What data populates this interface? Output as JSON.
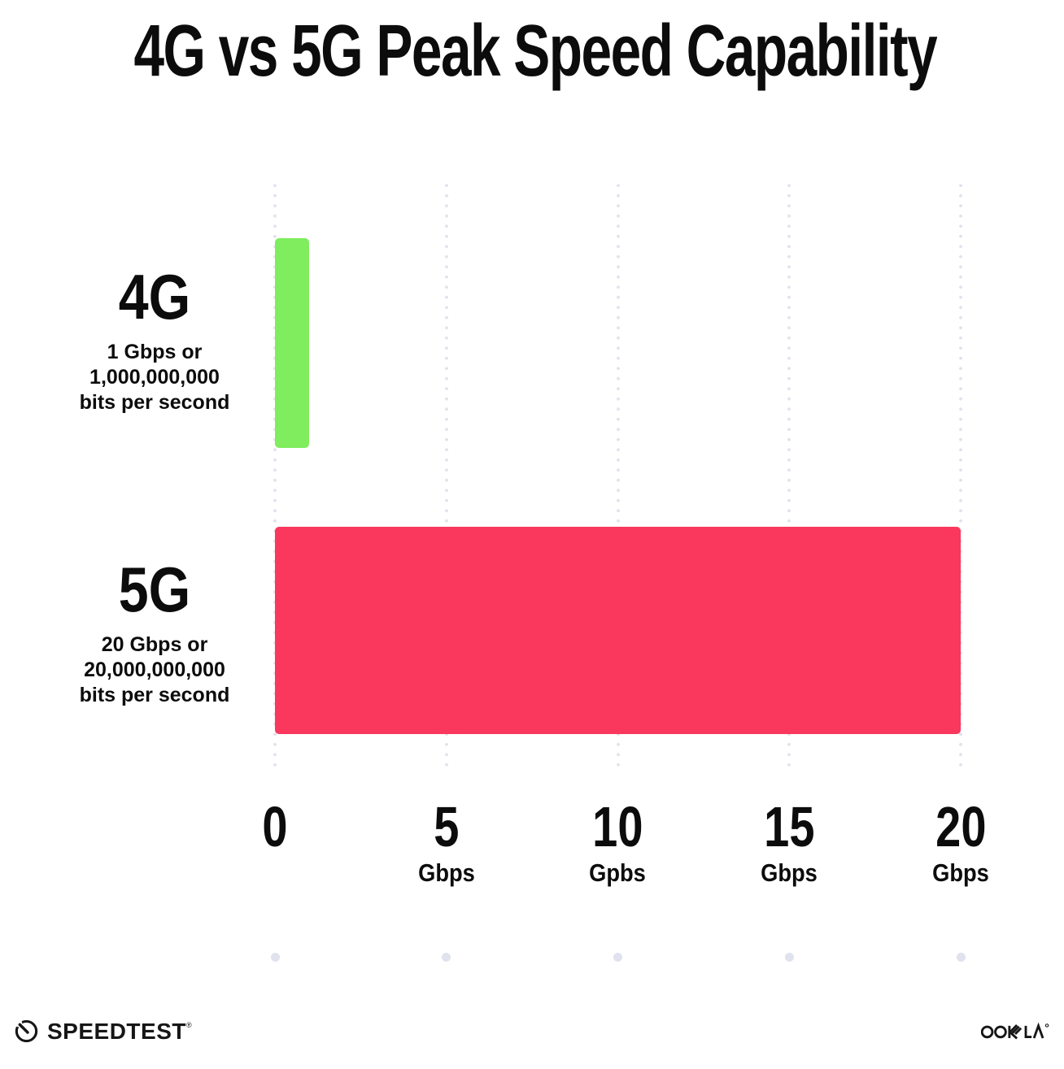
{
  "title": "4G vs 5G Peak Speed Capability",
  "chart_data": {
    "type": "bar",
    "orientation": "horizontal",
    "title": "4G vs 5G Peak Speed Capability",
    "categories": [
      "4G",
      "5G"
    ],
    "values": [
      1,
      20
    ],
    "x_range": [
      0,
      20
    ],
    "gridlines": "vertical-dotted",
    "legend": "none",
    "rows": [
      {
        "label": "4G",
        "desc_line1": "1 Gbps or",
        "desc_line2": "1,000,000,000",
        "desc_line3": "bits per second",
        "value_gbps": 1,
        "color": "#7fed5e"
      },
      {
        "label": "5G",
        "desc_line1": "20 Gbps or",
        "desc_line2": "20,000,000,000",
        "desc_line3": "bits per second",
        "value_gbps": 20,
        "color": "#fa375c"
      }
    ],
    "x_ticks": [
      {
        "value": "0",
        "unit": ""
      },
      {
        "value": "5",
        "unit": "Gbps"
      },
      {
        "value": "10",
        "unit": "Gpbs"
      },
      {
        "value": "15",
        "unit": "Gbps"
      },
      {
        "value": "20",
        "unit": "Gbps"
      }
    ]
  },
  "footer": {
    "speedtest_wordmark": "SPEEDTEST",
    "speedtest_trademark": "®",
    "ookla_wordmark": "OOKLA"
  },
  "colors": {
    "bar_4g": "#7fed5e",
    "bar_5g": "#fa375c",
    "gridline_dot": "#e0e2ee",
    "text": "#0c0c0c",
    "background": "#ffffff"
  }
}
